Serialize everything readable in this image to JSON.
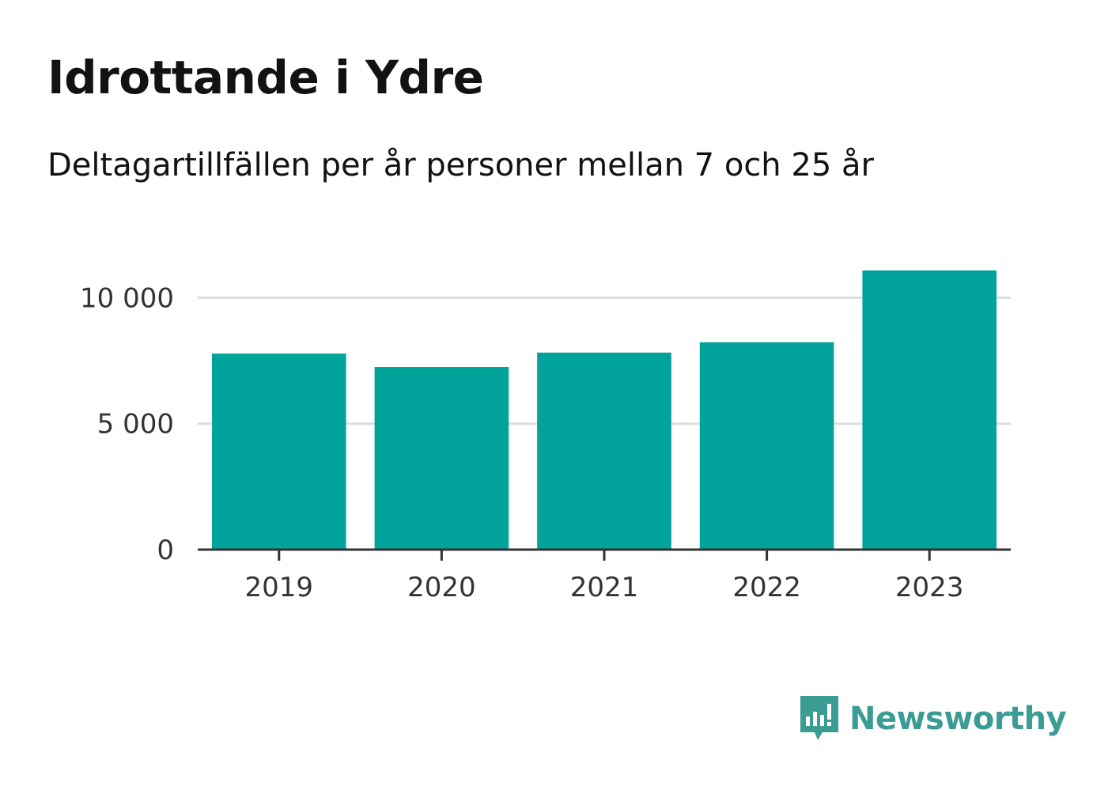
{
  "header": {
    "title": "Idrottande i Ydre",
    "subtitle": "Deltagartillfällen per år personer mellan 7 och 25 år"
  },
  "brand": {
    "name": "Newsworthy",
    "color": "#3b9c94"
  },
  "colors": {
    "bar": "#02a39a",
    "grid": "#dddddd",
    "axis": "#333333"
  },
  "chart_data": {
    "type": "bar",
    "categories": [
      "2019",
      "2020",
      "2021",
      "2022",
      "2023"
    ],
    "values": [
      7780,
      7250,
      7820,
      8230,
      11080
    ],
    "title": "Idrottande i Ydre",
    "subtitle": "Deltagartillfällen per år personer mellan 7 och 25 år",
    "xlabel": "",
    "ylabel": "",
    "ylim": [
      0,
      11080
    ],
    "yticks": [
      0,
      5000,
      10000
    ],
    "ytick_labels": [
      "0",
      "5 000",
      "10 000"
    ],
    "grid": true,
    "legend": "none"
  }
}
